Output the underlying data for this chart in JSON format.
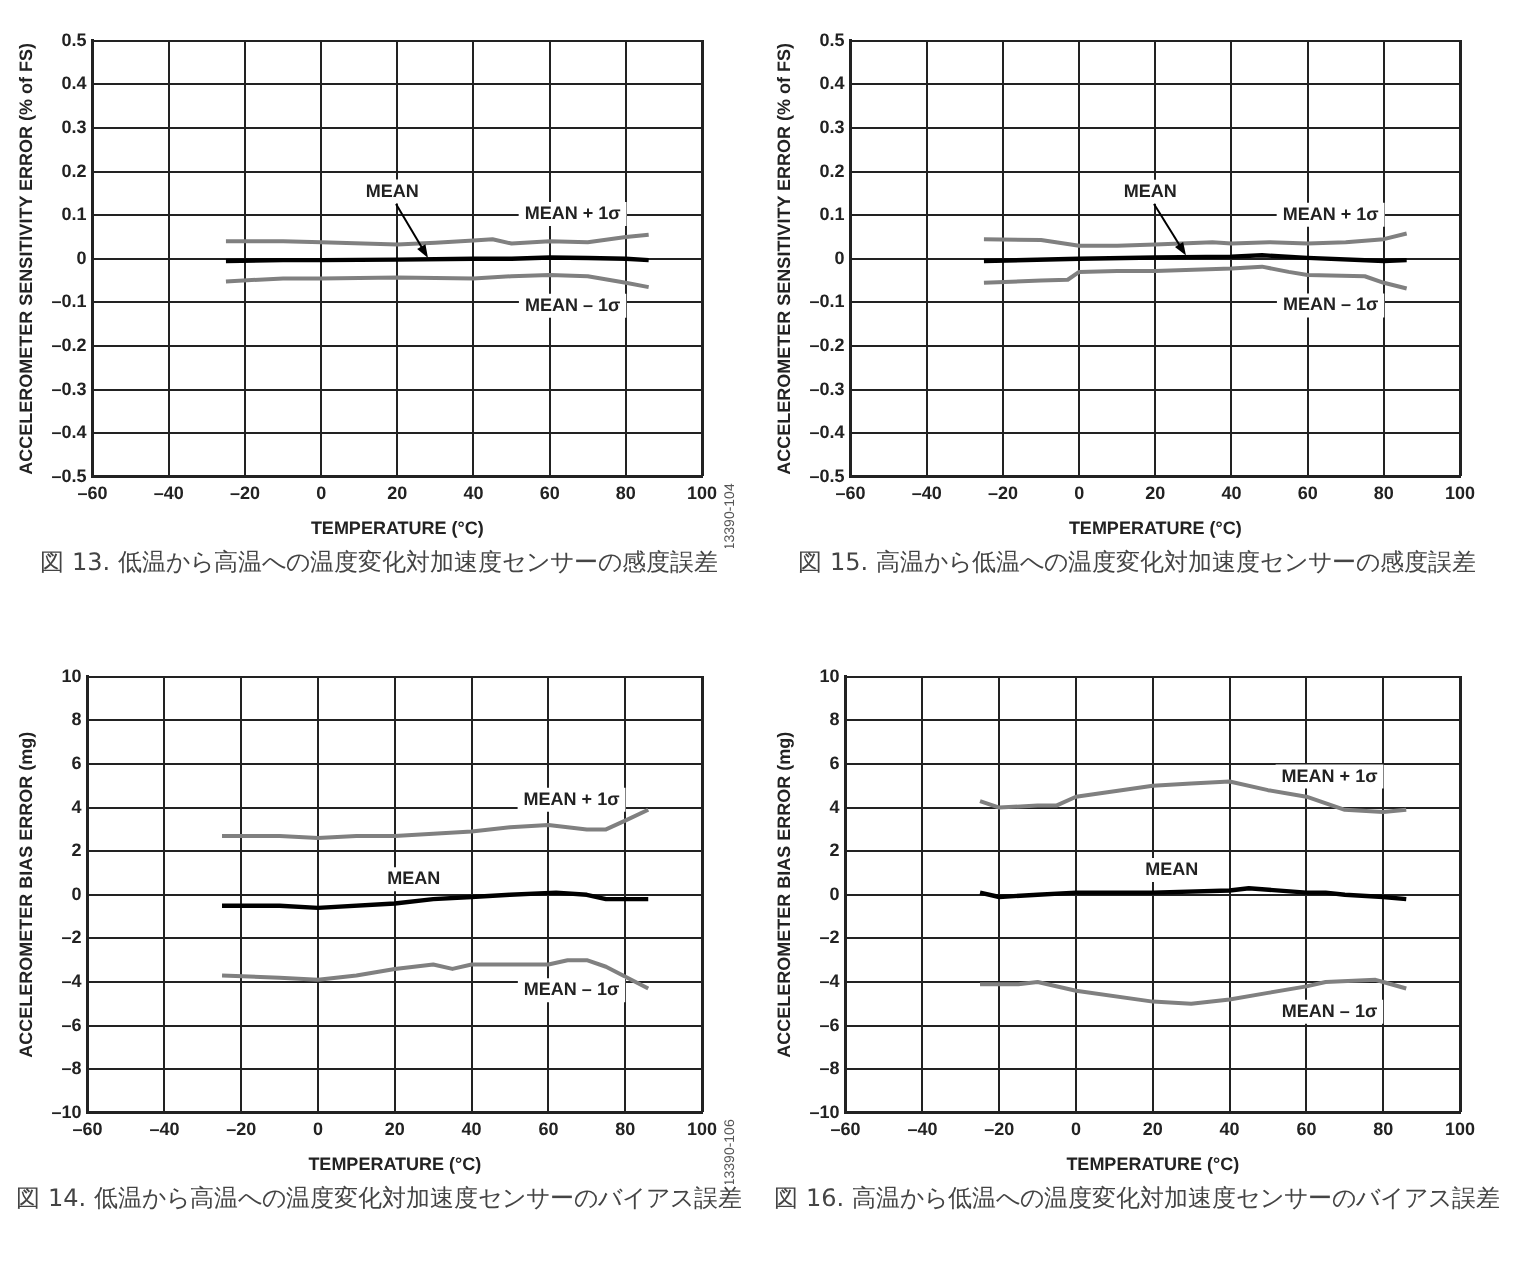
{
  "chart_data": [
    {
      "type": "line",
      "title": "図 13. 低温から高温への温度変化対加速度センサーの感度誤差",
      "xlabel": "TEMPERATURE (°C)",
      "ylabel": "ACCELEROMETER SENSITIVITY ERROR (% of FS)",
      "annotations": [
        "13390-104"
      ],
      "grid": true,
      "legend": false,
      "marker": "none",
      "line_style": "solid",
      "xlim": [
        -60,
        100
      ],
      "xticks": [
        {
          "value": -60,
          "label": "–60"
        },
        {
          "value": -40,
          "label": "–40"
        },
        {
          "value": -20,
          "label": "–20"
        },
        0,
        20,
        40,
        60,
        80,
        100
      ],
      "ylim": [
        -0.5,
        0.5
      ],
      "yticks": [
        {
          "value": -0.5,
          "label": "–0.5"
        },
        {
          "value": -0.4,
          "label": "–0.4"
        },
        {
          "value": -0.3,
          "label": "–0.3"
        },
        {
          "value": -0.2,
          "label": "–0.2"
        },
        {
          "value": -0.1,
          "label": "–0.1"
        },
        0,
        0.1,
        0.2,
        0.3,
        0.4,
        0.5
      ],
      "series": [
        {
          "name": "MEAN",
          "color": "#000000",
          "x": [
            -25,
            -10,
            0,
            20,
            40,
            50,
            60,
            70,
            80,
            86
          ],
          "values": [
            -0.005,
            -0.003,
            -0.003,
            -0.002,
            0,
            0,
            0.003,
            0.002,
            0,
            -0.003
          ]
        },
        {
          "name": "MEAN + 1σ",
          "color": "#808080",
          "x": [
            -25,
            -10,
            0,
            20,
            30,
            40,
            45,
            50,
            60,
            70,
            80,
            86
          ],
          "values": [
            0.04,
            0.04,
            0.038,
            0.033,
            0.037,
            0.042,
            0.045,
            0.035,
            0.04,
            0.038,
            0.05,
            0.055
          ]
        },
        {
          "name": "MEAN – 1σ",
          "color": "#808080",
          "x": [
            -25,
            -10,
            0,
            20,
            40,
            50,
            60,
            70,
            80,
            86
          ],
          "values": [
            -0.052,
            -0.045,
            -0.045,
            -0.043,
            -0.045,
            -0.04,
            -0.037,
            -0.04,
            -0.055,
            -0.065
          ]
        }
      ]
    },
    {
      "type": "line",
      "title": "図 15. 高温から低温への温度変化対加速度センサーの感度誤差",
      "xlabel": "TEMPERATURE (°C)",
      "ylabel": "ACCELEROMETER SENSITIVITY ERROR (% of FS)",
      "grid": true,
      "legend": false,
      "marker": "none",
      "line_style": "solid",
      "xlim": [
        -60,
        100
      ],
      "xticks": [
        {
          "value": -60,
          "label": "–60"
        },
        {
          "value": -40,
          "label": "–40"
        },
        {
          "value": -20,
          "label": "–20"
        },
        0,
        20,
        40,
        60,
        80,
        100
      ],
      "ylim": [
        -0.5,
        0.5
      ],
      "yticks": [
        {
          "value": -0.5,
          "label": "–0.5"
        },
        {
          "value": -0.4,
          "label": "–0.4"
        },
        {
          "value": -0.3,
          "label": "–0.3"
        },
        {
          "value": -0.2,
          "label": "–0.2"
        },
        {
          "value": -0.1,
          "label": "–0.1"
        },
        0,
        0.1,
        0.2,
        0.3,
        0.4,
        0.5
      ],
      "series": [
        {
          "name": "MEAN",
          "color": "#000000",
          "x": [
            -25,
            0,
            20,
            40,
            48,
            60,
            80,
            86
          ],
          "values": [
            -0.005,
            0,
            0.003,
            0.005,
            0.008,
            0.002,
            -0.005,
            -0.003
          ]
        },
        {
          "name": "MEAN + 1σ",
          "color": "#808080",
          "x": [
            -25,
            -10,
            0,
            10,
            20,
            35,
            40,
            50,
            60,
            70,
            80,
            86
          ],
          "values": [
            0.045,
            0.043,
            0.03,
            0.03,
            0.033,
            0.038,
            0.035,
            0.038,
            0.035,
            0.038,
            0.045,
            0.058
          ]
        },
        {
          "name": "MEAN – 1σ",
          "color": "#808080",
          "x": [
            -25,
            -10,
            -3,
            0,
            10,
            20,
            40,
            48,
            55,
            60,
            75,
            80,
            86
          ],
          "values": [
            -0.055,
            -0.05,
            -0.048,
            -0.03,
            -0.028,
            -0.028,
            -0.022,
            -0.018,
            -0.03,
            -0.037,
            -0.04,
            -0.055,
            -0.068
          ]
        }
      ]
    },
    {
      "type": "line",
      "title": "図 14. 低温から高温への温度変化対加速度センサーのバイアス誤差",
      "xlabel": "TEMPERATURE (°C)",
      "ylabel": "ACCELEROMETER BIAS ERROR (mg)",
      "annotations": [
        "13390-106"
      ],
      "grid": true,
      "legend": false,
      "marker": "none",
      "line_style": "solid",
      "xlim": [
        -60,
        100
      ],
      "xticks": [
        {
          "value": -60,
          "label": "–60"
        },
        {
          "value": -40,
          "label": "–40"
        },
        {
          "value": -20,
          "label": "–20"
        },
        0,
        20,
        40,
        60,
        80,
        100
      ],
      "ylim": [
        -10,
        10
      ],
      "yticks": [
        {
          "value": -10,
          "label": "–10"
        },
        {
          "value": -8,
          "label": "–8"
        },
        {
          "value": -6,
          "label": "–6"
        },
        {
          "value": -4,
          "label": "–4"
        },
        {
          "value": -2,
          "label": "–2"
        },
        0,
        2,
        4,
        6,
        8,
        10
      ],
      "series": [
        {
          "name": "MEAN",
          "color": "#000000",
          "x": [
            -25,
            -10,
            0,
            20,
            30,
            40,
            50,
            62,
            70,
            75,
            86
          ],
          "values": [
            -0.5,
            -0.5,
            -0.6,
            -0.4,
            -0.2,
            -0.1,
            0,
            0.1,
            0,
            -0.2,
            -0.2
          ]
        },
        {
          "name": "MEAN + 1σ",
          "color": "#808080",
          "x": [
            -25,
            -20,
            -10,
            0,
            10,
            20,
            30,
            40,
            50,
            60,
            70,
            75,
            80,
            86
          ],
          "values": [
            2.7,
            2.7,
            2.7,
            2.6,
            2.7,
            2.7,
            2.8,
            2.9,
            3.1,
            3.2,
            3,
            3,
            3.4,
            3.9
          ]
        },
        {
          "name": "MEAN – 1σ",
          "color": "#808080",
          "x": [
            -25,
            -10,
            0,
            10,
            20,
            30,
            35,
            40,
            50,
            60,
            65,
            70,
            75,
            86
          ],
          "values": [
            -3.7,
            -3.8,
            -3.9,
            -3.7,
            -3.4,
            -3.2,
            -3.4,
            -3.2,
            -3.2,
            -3.2,
            -3,
            -3,
            -3.3,
            -4.3
          ]
        }
      ]
    },
    {
      "type": "line",
      "title": "図 16. 高温から低温への温度変化対加速度センサーのバイアス誤差",
      "xlabel": "TEMPERATURE (°C)",
      "ylabel": "ACCELEROMETER BIAS ERROR (mg)",
      "grid": true,
      "legend": false,
      "marker": "none",
      "line_style": "solid",
      "xlim": [
        -60,
        100
      ],
      "xticks": [
        {
          "value": -60,
          "label": "–60"
        },
        {
          "value": -40,
          "label": "–40"
        },
        {
          "value": -20,
          "label": "–20"
        },
        0,
        20,
        40,
        60,
        80,
        100
      ],
      "ylim": [
        -10,
        10
      ],
      "yticks": [
        {
          "value": -10,
          "label": "–10"
        },
        {
          "value": -8,
          "label": "–8"
        },
        {
          "value": -6,
          "label": "–6"
        },
        {
          "value": -4,
          "label": "–4"
        },
        {
          "value": -2,
          "label": "–2"
        },
        0,
        2,
        4,
        6,
        8,
        10
      ],
      "series": [
        {
          "name": "MEAN",
          "color": "#000000",
          "x": [
            -25,
            -20,
            -10,
            0,
            20,
            40,
            45,
            60,
            65,
            70,
            80,
            86
          ],
          "values": [
            0.1,
            -0.1,
            0,
            0.1,
            0.1,
            0.2,
            0.3,
            0.1,
            0.1,
            0,
            -0.1,
            -0.2
          ]
        },
        {
          "name": "MEAN + 1σ",
          "color": "#808080",
          "x": [
            -25,
            -20,
            -10,
            -5,
            0,
            20,
            30,
            40,
            50,
            60,
            70,
            80,
            86
          ],
          "values": [
            4.3,
            4,
            4.1,
            4.1,
            4.5,
            5,
            5.1,
            5.2,
            4.8,
            4.5,
            3.9,
            3.8,
            3.9
          ]
        },
        {
          "name": "MEAN – 1σ",
          "color": "#808080",
          "x": [
            -25,
            -15,
            -10,
            0,
            20,
            30,
            40,
            50,
            60,
            65,
            78,
            80,
            86
          ],
          "values": [
            -4.1,
            -4.1,
            -4,
            -4.4,
            -4.9,
            -5,
            -4.8,
            -4.5,
            -4.2,
            -4,
            -3.9,
            -4,
            -4.3
          ]
        }
      ]
    }
  ]
}
